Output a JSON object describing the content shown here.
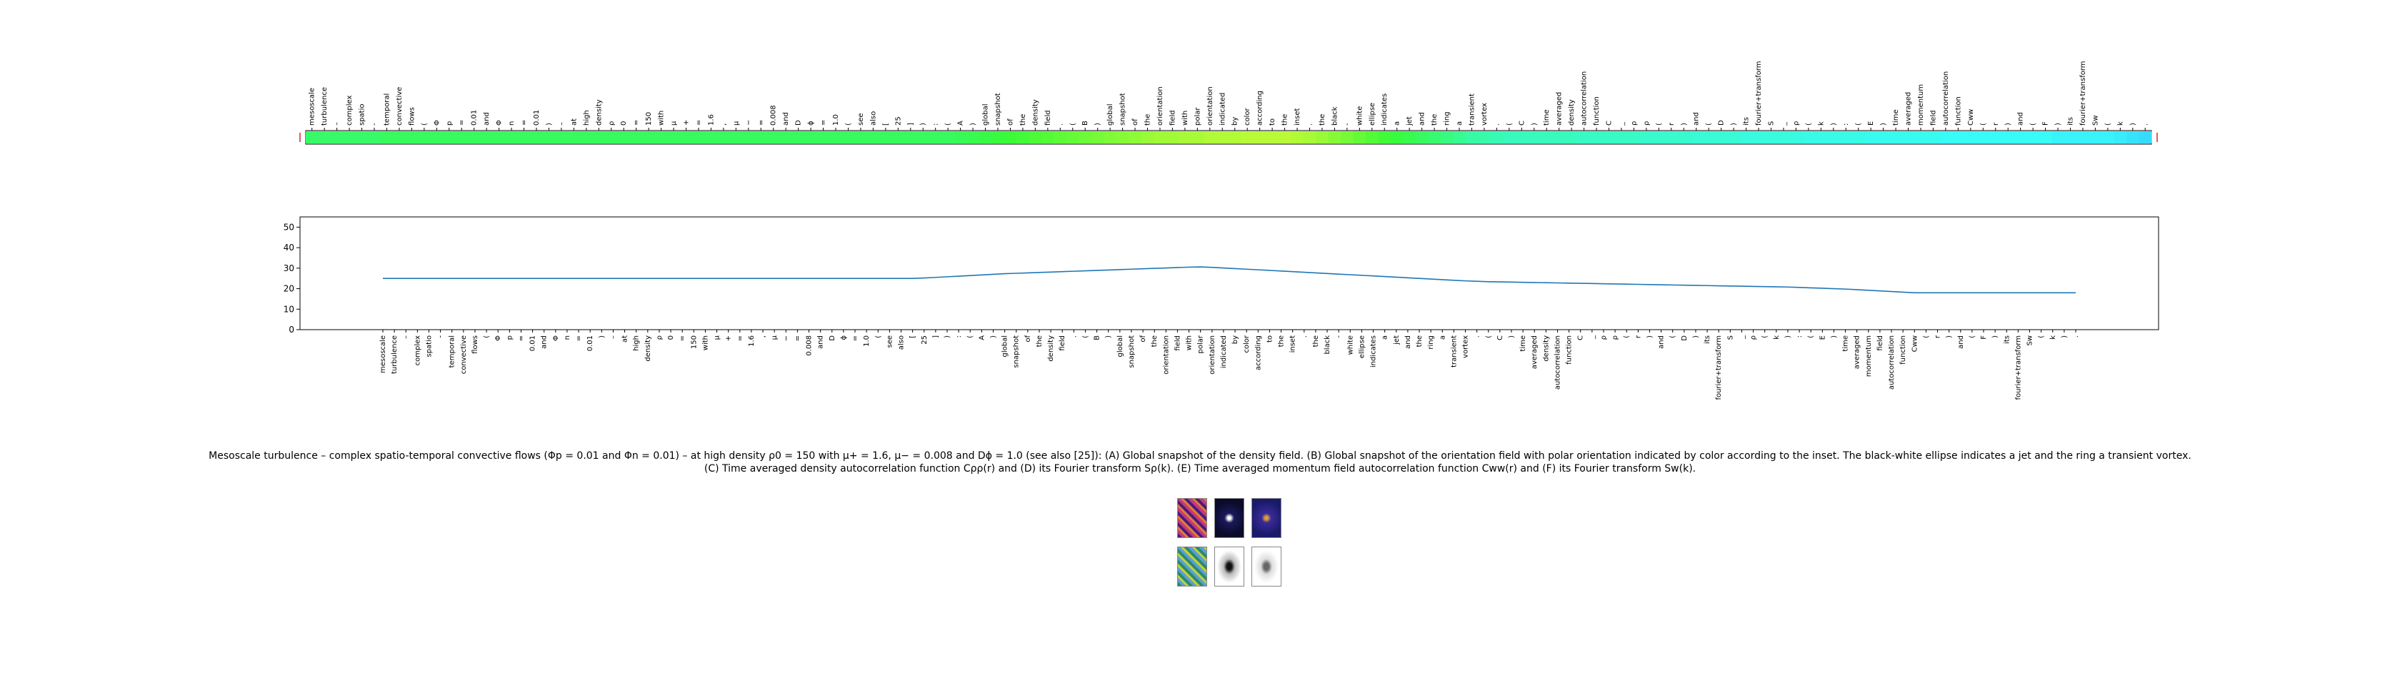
{
  "words": [
    "mesoscale",
    "turbulence",
    "–",
    "complex",
    "spatio",
    "-",
    "temporal",
    "convective",
    "flows",
    "(",
    "Φ",
    "p",
    "=",
    "0.01",
    "and",
    "Φ",
    "n",
    "=",
    "0.01",
    ")",
    "–",
    "at",
    "high",
    "density",
    "ρ",
    "0",
    "=",
    "150",
    "with",
    "μ",
    "+",
    "=",
    "1.6",
    ",",
    "μ",
    "−",
    "=",
    "0.008",
    "and",
    "D",
    "ϕ",
    "=",
    "1.0",
    "(",
    "see",
    "also",
    "[",
    "25",
    "]",
    ")",
    ":",
    "(",
    "A",
    ")",
    "global",
    "snapshot",
    "of",
    "the",
    "density",
    "field",
    ".",
    "(",
    "B",
    ")",
    "global",
    "snapshot",
    "of",
    "the",
    "orientation",
    "field",
    "with",
    "polar",
    "orientation",
    "indicated",
    "by",
    "color",
    "according",
    "to",
    "the",
    "inset",
    ".",
    "the",
    "black",
    "-",
    "white",
    "ellipse",
    "indicates",
    "a",
    "jet",
    "and",
    "the",
    "ring",
    "a",
    "transient",
    "vortex",
    ".",
    "(",
    "C",
    ")",
    "time",
    "averaged",
    "density",
    "autocorrelation",
    "function",
    "C",
    "_",
    "ρ",
    "ρ",
    "(",
    "r",
    ")",
    "and",
    "(",
    "D",
    ")",
    "its",
    "fourier+transform",
    "S",
    "_",
    "ρ",
    "(",
    "k",
    ")",
    ":",
    "(",
    "E",
    ")",
    "time",
    "averaged",
    "momentum",
    "field",
    "autocorrelation",
    "function",
    "Cww",
    "(",
    "r",
    ")",
    "and",
    "(",
    "F",
    ")",
    "its",
    "fourier+transform",
    "Sw",
    "(",
    "k",
    ")",
    "."
  ],
  "chart_data": [
    {
      "type": "heatmap",
      "colormap": "rainbow-segment",
      "color_values": [
        0.45,
        0.45,
        0.45,
        0.45,
        0.45,
        0.45,
        0.46,
        0.46,
        0.46,
        0.46,
        0.46,
        0.46,
        0.46,
        0.46,
        0.46,
        0.46,
        0.46,
        0.46,
        0.46,
        0.46,
        0.46,
        0.46,
        0.46,
        0.46,
        0.46,
        0.46,
        0.46,
        0.46,
        0.46,
        0.46,
        0.46,
        0.46,
        0.46,
        0.46,
        0.46,
        0.46,
        0.46,
        0.46,
        0.46,
        0.46,
        0.46,
        0.46,
        0.46,
        0.46,
        0.46,
        0.46,
        0.46,
        0.46,
        0.46,
        0.46,
        0.46,
        0.46,
        0.47,
        0.48,
        0.49,
        0.5,
        0.51,
        0.52,
        0.53,
        0.54,
        0.55,
        0.56,
        0.57,
        0.58,
        0.59,
        0.6,
        0.61,
        0.62,
        0.63,
        0.63,
        0.64,
        0.64,
        0.65,
        0.65,
        0.65,
        0.66,
        0.66,
        0.66,
        0.66,
        0.65,
        0.64,
        0.62,
        0.6,
        0.58,
        0.56,
        0.54,
        0.52,
        0.5,
        0.48,
        0.46,
        0.44,
        0.42,
        0.4,
        0.38,
        0.37,
        0.36,
        0.35,
        0.35,
        0.35,
        0.35,
        0.35,
        0.35,
        0.34,
        0.34,
        0.34,
        0.34,
        0.34,
        0.33,
        0.33,
        0.33,
        0.33,
        0.32,
        0.32,
        0.32,
        0.32,
        0.31,
        0.31,
        0.31,
        0.31,
        0.31,
        0.3,
        0.3,
        0.3,
        0.3,
        0.3,
        0.29,
        0.29,
        0.29,
        0.29,
        0.29,
        0.29,
        0.28,
        0.28,
        0.28,
        0.28,
        0.28,
        0.28,
        0.28,
        0.28,
        0.28,
        0.27,
        0.27,
        0.27,
        0.27,
        0.27,
        0.26,
        0.25,
        0.24,
        0.23,
        0.22,
        0.22,
        0.21,
        0.21,
        0.21,
        0.21,
        0.2,
        0.2,
        0.2,
        0.2
      ]
    },
    {
      "type": "line",
      "values": [
        25,
        25,
        25,
        25,
        25,
        25,
        25,
        25,
        25,
        25,
        25,
        25,
        25,
        25,
        25,
        25,
        25,
        25,
        25,
        25,
        25,
        25,
        25,
        25,
        25,
        25,
        25,
        25,
        25,
        25,
        25,
        25,
        25,
        25,
        25,
        25,
        25,
        25,
        25,
        25,
        25,
        25,
        25,
        25,
        25,
        25,
        25,
        25.2,
        25.5,
        25.8,
        26.1,
        26.4,
        26.7,
        27,
        27.3,
        27.5,
        27.7,
        27.9,
        28.1,
        28.3,
        28.5,
        28.7,
        28.9,
        29.1,
        29.3,
        29.5,
        29.7,
        29.9,
        30.1,
        30.3,
        30.5,
        30.6,
        30.4,
        30.1,
        29.8,
        29.5,
        29.2,
        28.9,
        28.6,
        28.3,
        28,
        27.7,
        27.4,
        27.1,
        26.8,
        26.5,
        26.2,
        25.9,
        25.6,
        25.3,
        25,
        24.7,
        24.4,
        24.1,
        23.8,
        23.6,
        23.4,
        23.3,
        23.2,
        23.1,
        23,
        22.9,
        22.8,
        22.7,
        22.6,
        22.5,
        22.4,
        22.3,
        22.2,
        22.1,
        22,
        21.9,
        21.8,
        21.7,
        21.6,
        21.5,
        21.4,
        21.3,
        21.2,
        21.1,
        21,
        20.9,
        20.8,
        20.6,
        20.4,
        20.2,
        20,
        19.8,
        19.5,
        19.2,
        18.9,
        18.6,
        18.3,
        18
      ],
      "ylim": [
        0,
        55
      ],
      "yticks": [
        0,
        10,
        20,
        30,
        40,
        50
      ],
      "line_color": "#1f77b4"
    }
  ],
  "caption": {
    "line1": "Mesoscale turbulence – complex spatio-temporal convective flows (Φp = 0.01 and Φn = 0.01) – at high density ρ0 = 150 with μ+ = 1.6, μ− = 0.008 and Dϕ = 1.0 (see also [25]): (A) Global snapshot of the density field. (B) Global snapshot of the orientation field with polar orientation indicated by color according to the inset. The black-white ellipse indicates a jet and the ring a transient vortex.",
    "line2": "(C) Time averaged density autocorrelation function Cρρ(r) and (D) its Fourier transform Sρ(k). (E) Time averaged momentum field autocorrelation function Cww(r) and (F) its Fourier transform Sw(k)."
  },
  "thumbnails": [
    {
      "name": "density-snapshot-thumbnail",
      "colors": [
        "#4b1a7a",
        "#c23a7a",
        "#e07a3a"
      ]
    },
    {
      "name": "density-autocorr-thumbnail",
      "colors": [
        "#0a0a2a",
        "#1a1a5a",
        "#ffffff"
      ]
    },
    {
      "name": "orientation-autocorr-thumbnail",
      "colors": [
        "#1a1a6a",
        "#3a2a9a",
        "#e0a030"
      ]
    },
    {
      "name": "orientation-snapshot-thumbnail",
      "colors": [
        "#2a8a6a",
        "#5aa0d0",
        "#c0d040"
      ]
    },
    {
      "name": "structure-factor-thumbnail",
      "colors": [
        "#ffffff",
        "#bbbbbb",
        "#111111"
      ]
    },
    {
      "name": "momentum-structure-thumbnail",
      "colors": [
        "#ffffff",
        "#dddddd",
        "#666666"
      ]
    }
  ]
}
